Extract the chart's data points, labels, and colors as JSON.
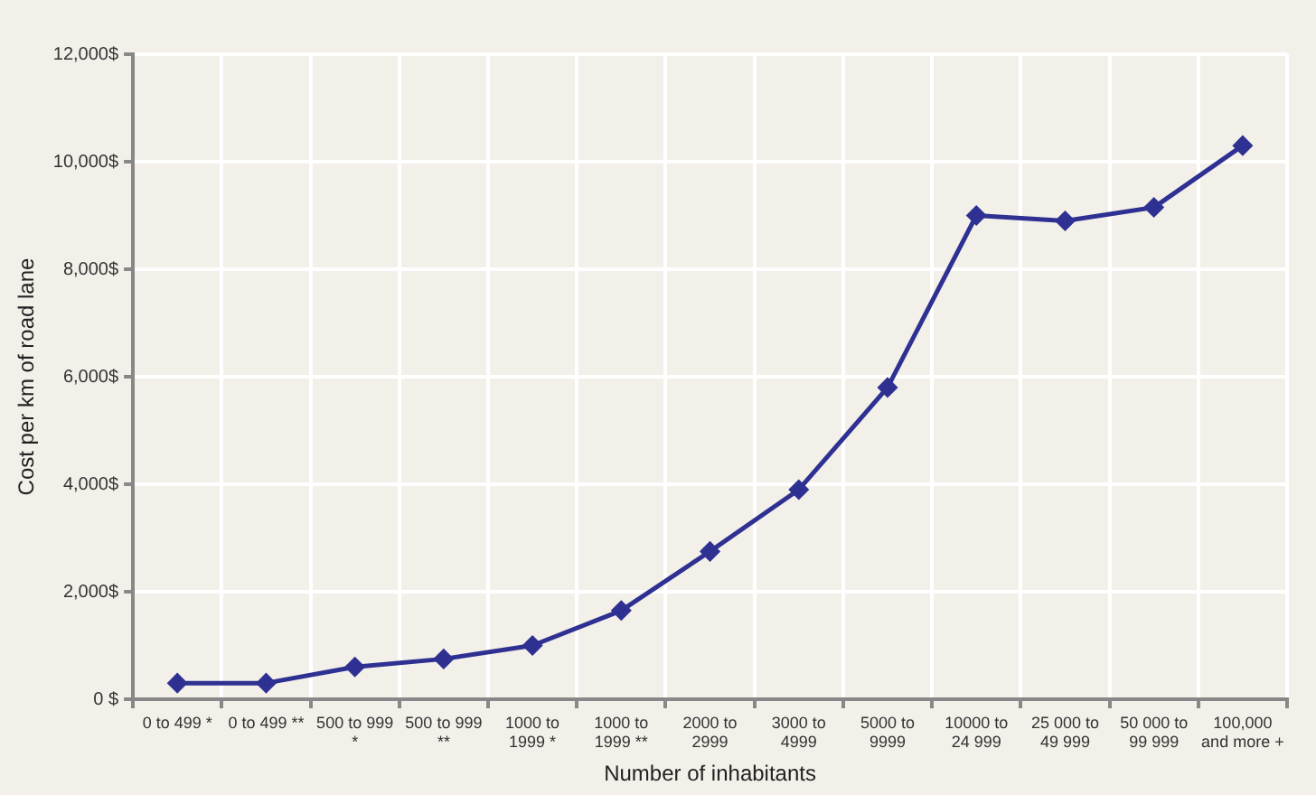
{
  "chart_data": {
    "type": "line",
    "xlabel": "Number of inhabitants",
    "ylabel": "Cost per km of road lane",
    "categories": [
      "0 to 499 *",
      "0 to 499 **",
      "500 to 999\n*",
      "500 to 999\n**",
      "1000 to\n1999 *",
      "1000 to\n1999 **",
      "2000 to\n2999",
      "3000 to\n4999",
      "5000 to\n9999",
      "10000 to\n24 999",
      "25 000 to\n49 999",
      "50 000 to\n99 999",
      "100,000\nand more +"
    ],
    "series": [
      {
        "color": "#2e3192",
        "values": [
          300,
          300,
          600,
          750,
          1000,
          1650,
          2750,
          3900,
          5800,
          9000,
          8900,
          9150,
          10300
        ]
      }
    ],
    "ylim": [
      0,
      12000
    ],
    "yticks": [
      {
        "value": 0,
        "label": "0 $"
      },
      {
        "value": 2000,
        "label": "2,000$"
      },
      {
        "value": 4000,
        "label": "4,000$"
      },
      {
        "value": 6000,
        "label": "6,000$"
      },
      {
        "value": 8000,
        "label": "8,000$"
      },
      {
        "value": 10000,
        "label": "10,000$"
      },
      {
        "value": 12000,
        "label": "12,000$"
      }
    ],
    "grid": true,
    "legend": false,
    "marker": "diamond",
    "line_style": "solid"
  }
}
